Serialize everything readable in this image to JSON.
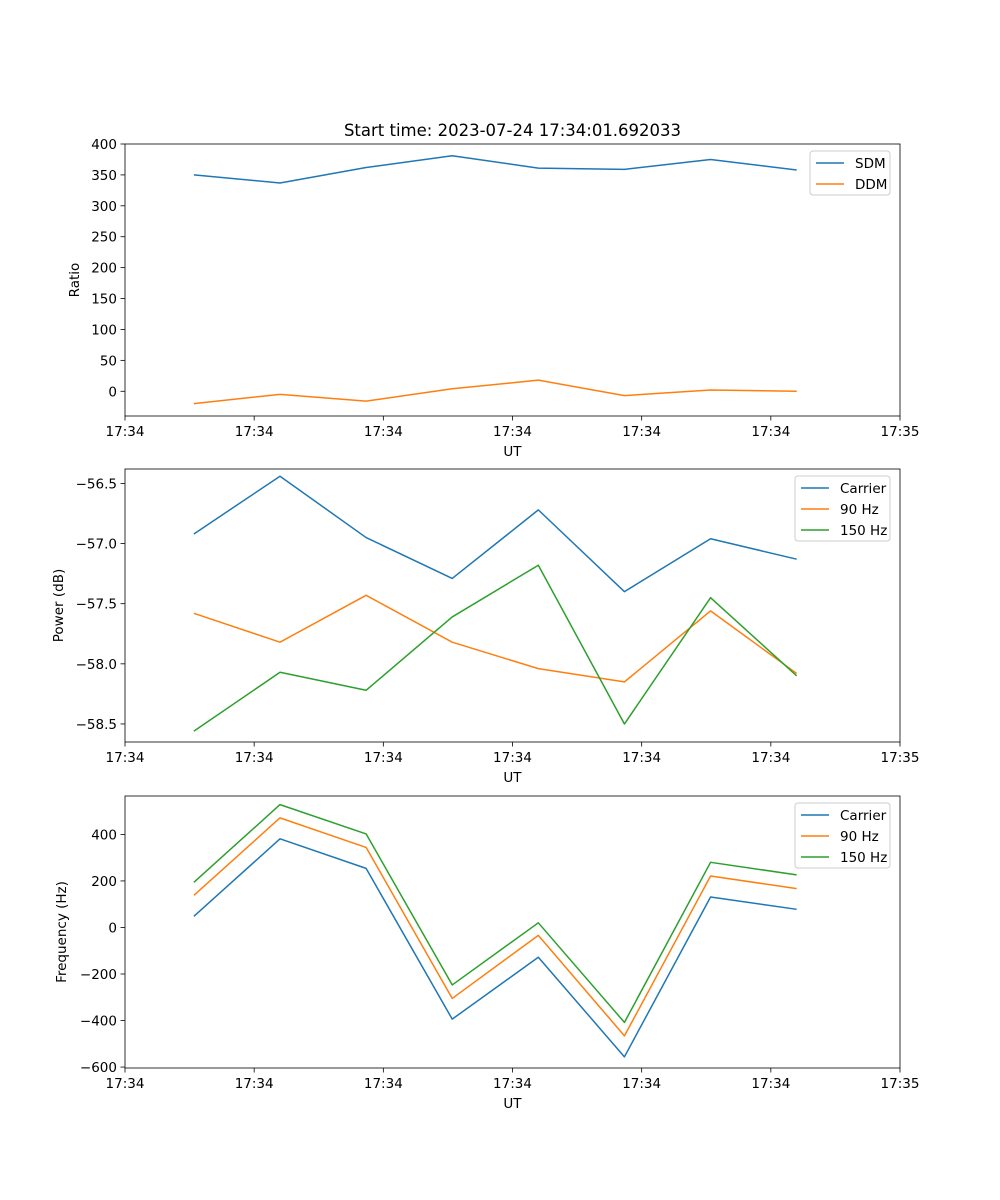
{
  "figure_title": "Start time: 2023-07-24 17:34:01.692033",
  "chart_data": [
    {
      "type": "line",
      "title": "Start time: 2023-07-24 17:34:01.692033",
      "xlabel": "UT",
      "ylabel": "Ratio",
      "x": [
        1,
        2,
        3,
        4,
        5,
        6,
        7,
        8
      ],
      "xlim": [
        0.2,
        9.2
      ],
      "x_ticks": [
        0.2,
        1.7,
        3.2,
        4.7,
        6.2,
        7.7,
        9.2
      ],
      "x_tick_labels": [
        "17:34",
        "17:34",
        "17:34",
        "17:34",
        "17:34",
        "17:34",
        "17:35"
      ],
      "ylim": [
        -40,
        400
      ],
      "y_ticks": [
        0,
        50,
        100,
        150,
        200,
        250,
        300,
        350,
        400
      ],
      "y_tick_labels": [
        "0",
        "50",
        "100",
        "150",
        "200",
        "250",
        "300",
        "350",
        "400"
      ],
      "legend_position": "top-right",
      "series": [
        {
          "name": "SDM",
          "color": "#1f77b4",
          "values": [
            350,
            337,
            362,
            381,
            361,
            359,
            375,
            358
          ]
        },
        {
          "name": "DDM",
          "color": "#ff7f0e",
          "values": [
            -20,
            -5,
            -16,
            4,
            18,
            -7,
            2,
            0
          ]
        }
      ]
    },
    {
      "type": "line",
      "title": "",
      "xlabel": "UT",
      "ylabel": "Power (dB)",
      "x": [
        1,
        2,
        3,
        4,
        5,
        6,
        7,
        8
      ],
      "xlim": [
        0.2,
        9.2
      ],
      "x_ticks": [
        0.2,
        1.7,
        3.2,
        4.7,
        6.2,
        7.7,
        9.2
      ],
      "x_tick_labels": [
        "17:34",
        "17:34",
        "17:34",
        "17:34",
        "17:34",
        "17:34",
        "17:35"
      ],
      "ylim": [
        -58.65,
        -56.38
      ],
      "y_ticks": [
        -58.5,
        -58.0,
        -57.5,
        -57.0,
        -56.5
      ],
      "y_tick_labels": [
        "−58.5",
        "−58.0",
        "−57.5",
        "−57.0",
        "−56.5"
      ],
      "legend_position": "top-right",
      "series": [
        {
          "name": "Carrier",
          "color": "#1f77b4",
          "values": [
            -56.92,
            -56.44,
            -56.95,
            -57.29,
            -56.72,
            -57.4,
            -56.96,
            -57.13
          ]
        },
        {
          "name": "90 Hz",
          "color": "#ff7f0e",
          "values": [
            -57.58,
            -57.82,
            -57.43,
            -57.82,
            -58.04,
            -58.15,
            -57.56,
            -58.08
          ]
        },
        {
          "name": "150 Hz",
          "color": "#2ca02c",
          "values": [
            -58.56,
            -58.07,
            -58.22,
            -57.61,
            -57.18,
            -58.5,
            -57.45,
            -58.1
          ]
        }
      ]
    },
    {
      "type": "line",
      "title": "",
      "xlabel": "UT",
      "ylabel": "Frequency (Hz)",
      "x": [
        1,
        2,
        3,
        4,
        5,
        6,
        7,
        8
      ],
      "xlim": [
        0.2,
        9.2
      ],
      "x_ticks": [
        0.2,
        1.7,
        3.2,
        4.7,
        6.2,
        7.7,
        9.2
      ],
      "x_tick_labels": [
        "17:34",
        "17:34",
        "17:34",
        "17:34",
        "17:34",
        "17:34",
        "17:35"
      ],
      "ylim": [
        -604,
        565
      ],
      "y_ticks": [
        -600,
        -400,
        -200,
        0,
        200,
        400
      ],
      "y_tick_labels": [
        "−600",
        "−400",
        "−200",
        "0",
        "200",
        "400"
      ],
      "legend_position": "top-right",
      "series": [
        {
          "name": "Carrier",
          "color": "#1f77b4",
          "values": [
            48,
            381,
            254,
            -394,
            -128,
            -556,
            131,
            78
          ]
        },
        {
          "name": "90 Hz",
          "color": "#ff7f0e",
          "values": [
            138,
            471,
            344,
            -305,
            -34,
            -466,
            221,
            167
          ]
        },
        {
          "name": "150 Hz",
          "color": "#2ca02c",
          "values": [
            194,
            528,
            402,
            -247,
            20,
            -408,
            280,
            226
          ]
        }
      ]
    }
  ]
}
